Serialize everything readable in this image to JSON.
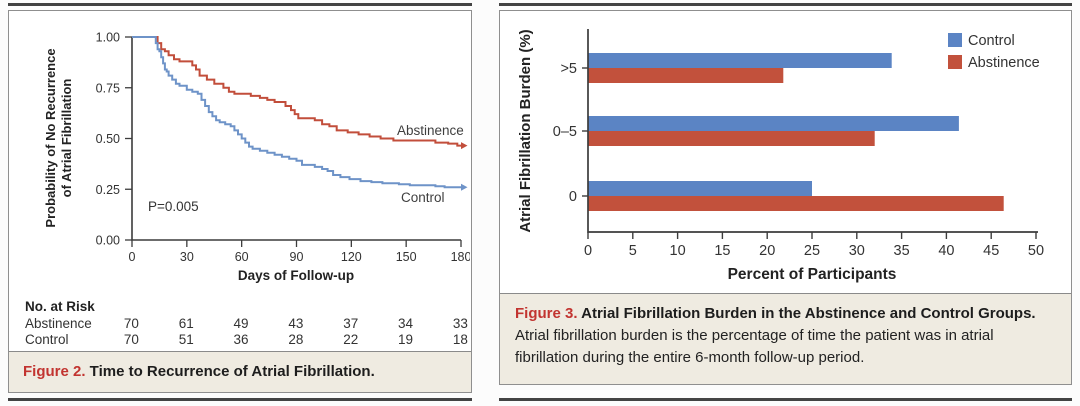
{
  "figure2": {
    "caption_label": "Figure 2.",
    "caption_title": " Time to Recurrence of Atrial Fibrillation.",
    "p_value": "P=0.005",
    "risk_header": "No. at Risk",
    "risk_rows": [
      {
        "label": "Abstinence",
        "counts": [
          "70",
          "61",
          "49",
          "43",
          "37",
          "34",
          "33"
        ]
      },
      {
        "label": "Control",
        "counts": [
          "70",
          "51",
          "36",
          "28",
          "22",
          "19",
          "18"
        ]
      }
    ]
  },
  "figure3": {
    "caption_label": "Figure 3.",
    "caption_title": " Atrial Fibrillation Burden in the Abstinence and Control Groups.",
    "caption_body": "Atrial fibrillation burden is the percentage of time the patient was in atrial fibrillation during the entire 6-month follow-up period."
  },
  "colors": {
    "abstinence_red": "#c24e3b",
    "control_blue": "#6e93c8",
    "bar_blue": "#5b84c4",
    "bar_red": "#c2513c",
    "axis": "#3c3c3c",
    "caption_bg": "#efebe1",
    "figure_label_red": "#c23430"
  },
  "chart_data": [
    {
      "type": "line",
      "subtype": "kaplan-meier-step",
      "title": "Time to Recurrence of Atrial Fibrillation",
      "xlabel": "Days of Follow-up",
      "ylabel": "Probability of No Recurrence of Atrial Fibrillation",
      "ylabel_lines": [
        "Probability of No Recurrence",
        "of Atrial Fibrillation"
      ],
      "xticks": [
        0,
        30,
        60,
        90,
        120,
        150,
        180
      ],
      "yticks": [
        0,
        0.25,
        0.5,
        0.75,
        1
      ],
      "xlim": [
        0,
        180
      ],
      "ylim": [
        0,
        1
      ],
      "annotation": "P=0.005",
      "legend_position": "on-curve",
      "grid": false,
      "series": [
        {
          "name": "Abstinence",
          "color": "#c24e3b",
          "points": [
            [
              0,
              1.0
            ],
            [
              14,
              0.97
            ],
            [
              16,
              0.94
            ],
            [
              18,
              0.93
            ],
            [
              20,
              0.91
            ],
            [
              23,
              0.89
            ],
            [
              26,
              0.88
            ],
            [
              33,
              0.86
            ],
            [
              35,
              0.84
            ],
            [
              37,
              0.81
            ],
            [
              41,
              0.79
            ],
            [
              45,
              0.77
            ],
            [
              50,
              0.75
            ],
            [
              53,
              0.73
            ],
            [
              56,
              0.72
            ],
            [
              65,
              0.71
            ],
            [
              70,
              0.7
            ],
            [
              74,
              0.69
            ],
            [
              78,
              0.68
            ],
            [
              84,
              0.66
            ],
            [
              87,
              0.64
            ],
            [
              89,
              0.62
            ],
            [
              91,
              0.6
            ],
            [
              100,
              0.59
            ],
            [
              104,
              0.57
            ],
            [
              108,
              0.56
            ],
            [
              112,
              0.54
            ],
            [
              118,
              0.53
            ],
            [
              124,
              0.52
            ],
            [
              130,
              0.51
            ],
            [
              136,
              0.5
            ],
            [
              143,
              0.49
            ],
            [
              166,
              0.48
            ],
            [
              173,
              0.475
            ],
            [
              178,
              0.465
            ]
          ]
        },
        {
          "name": "Control",
          "color": "#6e93c8",
          "points": [
            [
              0,
              1.0
            ],
            [
              13,
              0.97
            ],
            [
              14,
              0.94
            ],
            [
              15,
              0.93
            ],
            [
              16,
              0.9
            ],
            [
              17,
              0.87
            ],
            [
              18,
              0.84
            ],
            [
              19,
              0.83
            ],
            [
              20,
              0.81
            ],
            [
              22,
              0.79
            ],
            [
              24,
              0.77
            ],
            [
              26,
              0.76
            ],
            [
              30,
              0.74
            ],
            [
              33,
              0.73
            ],
            [
              36,
              0.72
            ],
            [
              38,
              0.69
            ],
            [
              40,
              0.66
            ],
            [
              42,
              0.63
            ],
            [
              44,
              0.61
            ],
            [
              46,
              0.59
            ],
            [
              48,
              0.58
            ],
            [
              51,
              0.57
            ],
            [
              54,
              0.56
            ],
            [
              56,
              0.54
            ],
            [
              58,
              0.52
            ],
            [
              60,
              0.5
            ],
            [
              62,
              0.48
            ],
            [
              64,
              0.46
            ],
            [
              66,
              0.45
            ],
            [
              70,
              0.44
            ],
            [
              74,
              0.43
            ],
            [
              78,
              0.42
            ],
            [
              82,
              0.41
            ],
            [
              86,
              0.4
            ],
            [
              90,
              0.39
            ],
            [
              93,
              0.37
            ],
            [
              100,
              0.36
            ],
            [
              104,
              0.35
            ],
            [
              107,
              0.34
            ],
            [
              110,
              0.32
            ],
            [
              114,
              0.31
            ],
            [
              119,
              0.3
            ],
            [
              125,
              0.29
            ],
            [
              131,
              0.285
            ],
            [
              137,
              0.28
            ],
            [
              146,
              0.275
            ],
            [
              152,
              0.27
            ],
            [
              166,
              0.265
            ],
            [
              171,
              0.26
            ]
          ]
        }
      ]
    },
    {
      "type": "bar",
      "orientation": "horizontal",
      "title": "Atrial Fibrillation Burden in the Abstinence and Control Groups",
      "categories": [
        ">5",
        "0–5",
        "0"
      ],
      "series": [
        {
          "name": "Control",
          "color": "#5b84c4",
          "values": [
            33.9,
            41.4,
            25.0
          ]
        },
        {
          "name": "Abstinence",
          "color": "#c2513c",
          "values": [
            21.8,
            32.0,
            46.4
          ]
        }
      ],
      "xlabel": "Percent of Participants",
      "ylabel": "Atrial Fibrillation Burden (%)",
      "xticks": [
        0,
        5,
        10,
        15,
        20,
        25,
        30,
        35,
        40,
        45,
        50
      ],
      "xlim": [
        0,
        50
      ],
      "legend_position": "top-right",
      "grid": false
    }
  ]
}
